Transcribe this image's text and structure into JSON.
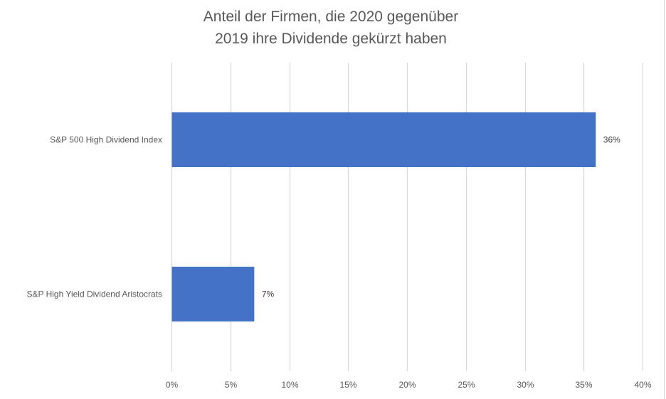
{
  "chart_data": {
    "type": "bar",
    "orientation": "horizontal",
    "title": "Anteil der Firmen, die 2020 gegenüber 2019 ihre Dividende gekürzt haben",
    "title_lines": [
      "Anteil der Firmen, die 2020 gegenüber",
      "2019 ihre Dividende gekürzt haben"
    ],
    "categories": [
      "S&P 500 High Dividend Index",
      "S&P High Yield Dividend Aristocrats"
    ],
    "values": [
      36,
      7
    ],
    "data_labels": [
      "36%",
      "7%"
    ],
    "xlabel": "",
    "ylabel": "",
    "xlim": [
      0,
      40
    ],
    "xticks": [
      0,
      5,
      10,
      15,
      20,
      25,
      30,
      35,
      40
    ],
    "xtick_labels": [
      "0%",
      "5%",
      "10%",
      "15%",
      "20%",
      "25%",
      "30%",
      "35%",
      "40%"
    ],
    "grid": true,
    "legend": "none",
    "colors": {
      "bar": "#4472C4",
      "grid": "#D9D9D9",
      "text": "#595959"
    }
  }
}
